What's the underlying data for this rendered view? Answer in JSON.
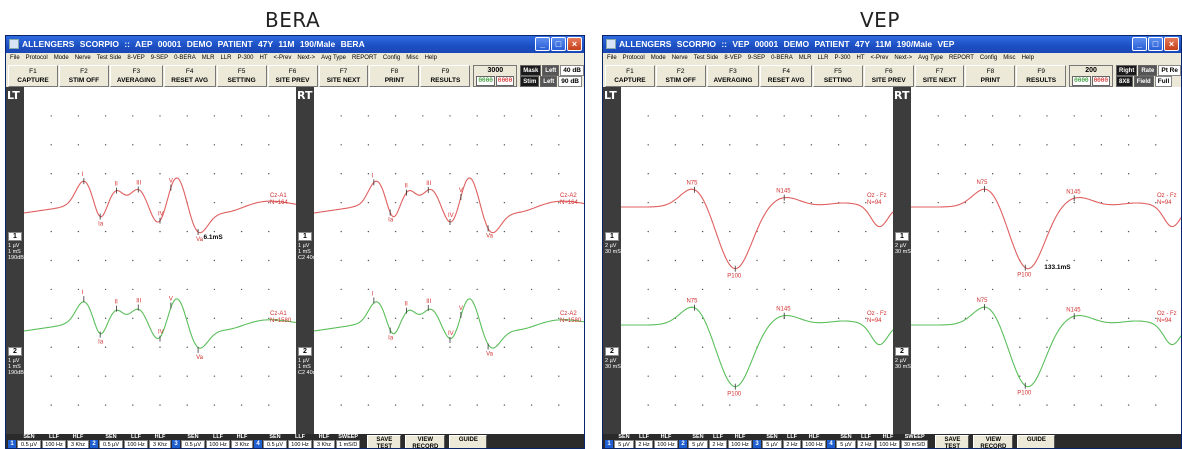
{
  "captions": {
    "left": "BERA",
    "right": "VEP"
  },
  "windows": [
    {
      "id": "bera",
      "title": "ALLENGERS SCORPIO  ::  AEP  00001    DEMO PATIENT   47Y 11M 190/Male     BERA",
      "menu": [
        "File",
        "Protocol",
        "Mode",
        "Nerve",
        "Test Side",
        "8-VEP",
        "9-SEP",
        "0-BERA",
        "MLR",
        "LLR",
        "P-300",
        "HT",
        "<-Prev",
        "Next->",
        "Avg Type",
        "REPORT",
        "Config",
        "Misc",
        "Help"
      ],
      "fkeys": [
        {
          "fn": "F1",
          "label": "CAPTURE"
        },
        {
          "fn": "F2",
          "label": "STIM OFF"
        },
        {
          "fn": "F3",
          "label": "AVERAGING"
        },
        {
          "fn": "F4",
          "label": "RESET AVG"
        },
        {
          "fn": "F5",
          "label": "SETTING"
        },
        {
          "fn": "F6",
          "label": "SITE PREV"
        },
        {
          "fn": "F7",
          "label": "SITE NEXT"
        },
        {
          "fn": "F8",
          "label": "PRINT"
        },
        {
          "fn": "F9",
          "label": "RESULTS"
        }
      ],
      "counter": {
        "num": "3000",
        "led1": "0000",
        "led2": "0000"
      },
      "info": {
        "tag1": "Mask",
        "tag1small": "Left",
        "val1": "40 dB",
        "tag2": "Stim",
        "tag2small": "Left",
        "val2": "90 dB"
      },
      "left_side": "LT",
      "right_side": "RT",
      "protocol_tag": "BERA",
      "channel_info": [
        "1 µV\n1 mS\n190dB",
        "1 µV\n1 mS\n190dB",
        "1 µV\n1 mS\nC2 40dB",
        "1 µV\n1 mS\nC2 40dB"
      ],
      "channel_nums": [
        "1",
        "2",
        "1",
        "2"
      ],
      "latency_text_left": "6.1mS",
      "latency_text_right": "",
      "trace_labels": {
        "left_top": [
          "I",
          "Ia",
          "II",
          "III",
          "IV",
          "V",
          "Va"
        ],
        "left_bottom": [
          "I",
          "Ia",
          "II",
          "III",
          "IV",
          "V",
          "Va"
        ],
        "right_top": [
          "I",
          "Ia",
          "II",
          "III",
          "IV",
          "V",
          "Va"
        ],
        "right_bottom": [
          "I",
          "Ia",
          "II",
          "III",
          "IV",
          "V",
          "Va"
        ]
      },
      "montage": {
        "lt1": "Cz-A1",
        "lt1b": "N=164",
        "lt2": "Cz-A1",
        "lt2b": "N=1580",
        "rt1": "Cz-A2",
        "rt1b": "N=164",
        "rt2": "Cz-A2",
        "rt2b": "N=1580"
      },
      "bottom": {
        "heads": [
          "SEN",
          "LLF",
          "HLF"
        ],
        "groups": [
          {
            "idx": "1",
            "vals": [
              "0.5 µV",
              "100 Hz",
              "3 Khz"
            ]
          },
          {
            "idx": "2",
            "vals": [
              "0.5 µV",
              "100 Hz",
              "3 Khz"
            ]
          },
          {
            "idx": "3",
            "vals": [
              "0.5 µV",
              "100 Hz",
              "3 Khz"
            ]
          },
          {
            "idx": "4",
            "vals": [
              "0.5 µV",
              "100 Hz",
              "3 Khz"
            ]
          }
        ],
        "sweep_label": "SWEEP",
        "sweep_val": "1 mS/D",
        "btns": [
          "SAVE\nTEST",
          "VIEW\nRECORD",
          "GUIDE"
        ]
      }
    },
    {
      "id": "vep",
      "title": "ALLENGERS SCORPIO  ::  VEP  00001    DEMO PATIENT   47Y 11M 190/Male     VEP",
      "menu": [
        "File",
        "Protocol",
        "Mode",
        "Nerve",
        "Test Side",
        "8-VEP",
        "9-SEP",
        "0-BERA",
        "MLR",
        "LLR",
        "P-300",
        "HT",
        "<-Prev",
        "Next->",
        "Avg Type",
        "REPORT",
        "Config",
        "Misc",
        "Help"
      ],
      "fkeys": [
        {
          "fn": "F1",
          "label": "CAPTURE"
        },
        {
          "fn": "F2",
          "label": "STIM OFF"
        },
        {
          "fn": "F3",
          "label": "AVERAGING"
        },
        {
          "fn": "F4",
          "label": "RESET AVG"
        },
        {
          "fn": "F5",
          "label": "SETTING"
        },
        {
          "fn": "F6",
          "label": "SITE PREV"
        },
        {
          "fn": "F7",
          "label": "SITE NEXT"
        },
        {
          "fn": "F8",
          "label": "PRINT"
        },
        {
          "fn": "F9",
          "label": "RESULTS"
        }
      ],
      "counter": {
        "num": "200",
        "led1": "0000",
        "led2": "0000"
      },
      "info": {
        "tag1": "Right",
        "tag1small": "Rate",
        "val1": "Pt Re",
        "tag2": "8X8",
        "tag2small": "Field",
        "val2": "Full"
      },
      "left_side": "LT",
      "right_side": "RT",
      "protocol_tag": "VEP",
      "channel_info": [
        "2 µV\n30 mS",
        "2 µV\n30 mS",
        "2 µV\n30 mS",
        "2 µV\n30 mS"
      ],
      "channel_nums": [
        "1",
        "2",
        "1",
        "2"
      ],
      "latency_text_left": "",
      "latency_text_right": "133.1mS",
      "trace_labels": {
        "left_top": [
          "N75",
          "P100",
          "N145"
        ],
        "left_bottom": [
          "N75",
          "P100",
          "N145"
        ],
        "right_top": [
          "N75",
          "P100",
          "N145"
        ],
        "right_bottom": [
          "N75",
          "P100",
          "N145"
        ]
      },
      "montage": {
        "lt1": "Oz - Fz",
        "lt1b": "N=94",
        "lt2": "Oz - Fz",
        "lt2b": "N=94",
        "rt1": "Oz - Fz",
        "rt1b": "N=94",
        "rt2": "Oz - Fz",
        "rt2b": "N=94"
      },
      "bottom": {
        "heads": [
          "SEN",
          "LLF",
          "HLF"
        ],
        "groups": [
          {
            "idx": "1",
            "vals": [
              "5 µV",
              "2 Hz",
              "100 Hz"
            ]
          },
          {
            "idx": "2",
            "vals": [
              "5 µV",
              "2 Hz",
              "100 Hz"
            ]
          },
          {
            "idx": "3",
            "vals": [
              "5 µV",
              "2 Hz",
              "100 Hz"
            ]
          },
          {
            "idx": "4",
            "vals": [
              "5 µV",
              "2 Hz",
              "100 Hz"
            ]
          }
        ],
        "sweep_label": "SWEEP",
        "sweep_val": "30 mS/D",
        "btns": [
          "SAVE\nTEST",
          "VIEW\nRECORD",
          "GUIDE"
        ]
      }
    }
  ],
  "colors": {
    "red_trace": "#e06060",
    "green_trace": "#5cbf5c",
    "grid_dot": "#555555",
    "label_red": "#d03030"
  }
}
